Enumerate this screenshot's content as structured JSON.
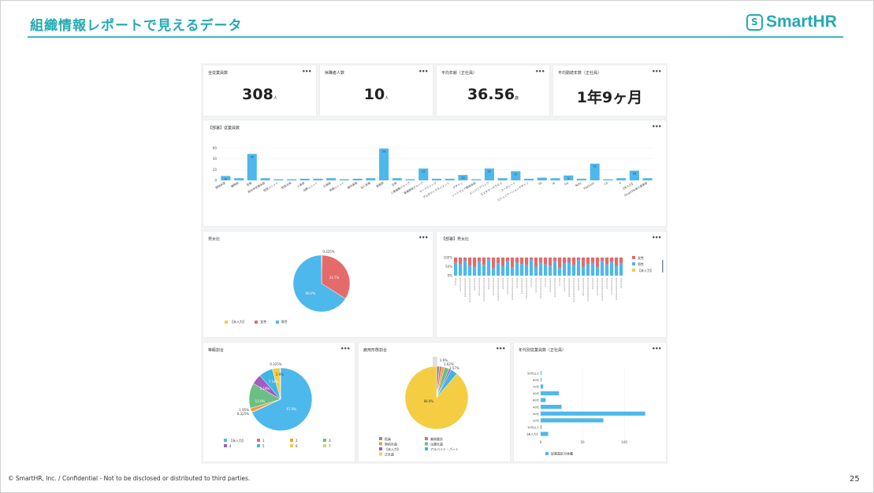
{
  "slide": {
    "title": "組織情報レポートで見えるデータ",
    "logo_mark": "S",
    "logo_text": "SmartHR",
    "footer": "© SmartHR, Inc. / Confidential - Not to be disclosed or distributed to third parties.",
    "page_number": "25"
  },
  "kpis": [
    {
      "title": "全従業員数",
      "value": "308",
      "unit": "人"
    },
    {
      "title": "休職者人数",
      "value": "10",
      "unit": "人"
    },
    {
      "title": "平均年齢（正社員）",
      "value": "36.56",
      "unit": "歳"
    },
    {
      "title": "平均勤続年数（正社員）",
      "value": "1年9ヶ月",
      "unit": ""
    }
  ],
  "menu_icon": "•••",
  "colors": {
    "accent": "#24aab3",
    "blue": "#4db8ec",
    "red": "#e56b6b",
    "yellow": "#f5cd43",
    "green": "#6cbf84",
    "purple": "#a45ac0",
    "orange": "#f29a42",
    "lime": "#c7dc6a"
  },
  "chart_data": [
    {
      "type": "bar",
      "title": "【部署】従業員数",
      "yticks": [
        "60",
        "40",
        "20",
        "0"
      ],
      "ylim": [
        0,
        70
      ],
      "categories": [
        "開発本部",
        "戦略部",
        "営業",
        "西日本営業本部",
        "経営ユニット",
        "経営企画",
        "人事部",
        "法務ユニット",
        "広報部",
        "労務ユニット",
        "国内事業",
        "法人営業",
        "事業部",
        "企画",
        "人事戦略グループ",
        "事業開発グループ",
        "マーケティング",
        "プロダクトマネジメント",
        "デザイン",
        "ソフトウェア開発本部",
        "エンジニアリング",
        "カスタマーサクセス",
        "コーポレート",
        "コミュニケーションデザイン",
        "5S",
        "IS",
        "Dq",
        "Note",
        "Platinum",
        "CS",
        "4",
        "【未入力】",
        "SmartHR導入事業部"
      ],
      "values": [
        8,
        4,
        49,
        4,
        2,
        2,
        3,
        3,
        4,
        2,
        3,
        4,
        59,
        4,
        2,
        22,
        3,
        3,
        10,
        2,
        22,
        4,
        17,
        3,
        5,
        4,
        9,
        3,
        31,
        2,
        4,
        18,
        4
      ],
      "data_labels": [
        "8",
        "",
        "49",
        "",
        "",
        "",
        "",
        "",
        "",
        "",
        "",
        "",
        "59",
        "",
        "",
        "22",
        "",
        "",
        "10",
        "",
        "22",
        "",
        "17",
        "",
        "",
        "",
        "9",
        "",
        "31",
        "",
        "",
        "18",
        ""
      ]
    },
    {
      "type": "pie",
      "title": "男女比",
      "labels": [
        "【未入力】",
        "女性",
        "男性"
      ],
      "values": [
        0.325,
        33.7,
        66.0
      ],
      "slice_labels": [
        "0.325%",
        "33.7%",
        "66.0%"
      ]
    },
    {
      "type": "bar",
      "title": "【部署】男女比",
      "stacked_percent": true,
      "yticks": [
        "100%",
        "50%",
        "0%"
      ],
      "legend": [
        "女性",
        "男性",
        "【未入力】"
      ],
      "bar_count": 36,
      "male_share": [
        70,
        62,
        85,
        55,
        48,
        75,
        60,
        90,
        40,
        68,
        52,
        80,
        45,
        70,
        65,
        58,
        88,
        50,
        72,
        62,
        55,
        80,
        42,
        66,
        74,
        58,
        86,
        50,
        64,
        70,
        48,
        82,
        60,
        76,
        54,
        68
      ]
    },
    {
      "type": "pie",
      "title": "等級割合",
      "labels": [
        "【未入力】",
        "1",
        "2",
        "3",
        "4",
        "5",
        "6",
        "7"
      ],
      "values": [
        67.9,
        0.325,
        1.95,
        13.0,
        5.19,
        7.14,
        3.9,
        0.325
      ],
      "slice_labels": [
        "67.9%",
        "0.325%",
        "1.95%",
        "13.0%",
        "5.19%",
        "7.14%",
        "3.9%",
        "0.325%"
      ]
    },
    {
      "type": "pie",
      "title": "雇用形態割合",
      "labels": [
        "役員",
        "業務委託",
        "契約社員",
        "派遣社員",
        "【未入力】",
        "アルバイト・パート",
        "正社員"
      ],
      "values": [
        1.5,
        1.2,
        1.3,
        2.6,
        1.0,
        3.57,
        88.8
      ],
      "slice_labels": [
        "",
        "",
        "",
        "2.6%",
        "",
        "3.57%",
        "88.8%"
      ],
      "annotation_extra": "1.62%"
    },
    {
      "type": "bar",
      "orientation": "horizontal",
      "title": "年代別従業員数（正社員）",
      "categories": [
        "50代以上",
        "60代",
        "70代",
        "50代",
        "60代",
        "40代",
        "30代",
        "20代",
        "10代以上",
        "【未入力】"
      ],
      "values": [
        1,
        1,
        3,
        22,
        6,
        25,
        125,
        75,
        1,
        9
      ],
      "xticks": [
        "0",
        "50",
        "100"
      ],
      "legend": "従業員区分体種"
    }
  ]
}
